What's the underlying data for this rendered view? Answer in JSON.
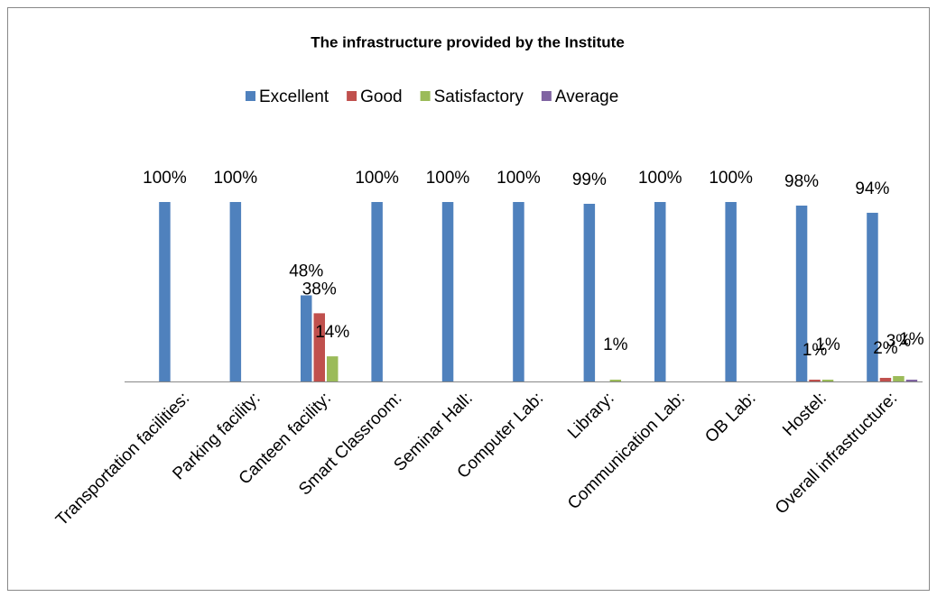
{
  "chart_data": {
    "type": "bar",
    "title": "The infrastructure provided by the Institute",
    "categories": [
      "Transportation facilities:",
      "Parking facility:",
      "Canteen facility:",
      "Smart Classroom:",
      "Seminar Hall:",
      "Computer Lab:",
      "Library:",
      "Communication Lab:",
      "OB Lab:",
      "Hostel:",
      "Overall infrastructure:"
    ],
    "series": [
      {
        "name": "Excellent",
        "color": "#4f81bd",
        "values": [
          100,
          100,
          48,
          100,
          100,
          100,
          99,
          100,
          100,
          98,
          94
        ],
        "value_labels": [
          "100%",
          "100%",
          "48%",
          "100%",
          "100%",
          "100%",
          "99%",
          "100%",
          "100%",
          "98%",
          "94%"
        ]
      },
      {
        "name": "Good",
        "color": "#c0504d",
        "values": [
          null,
          null,
          38,
          null,
          null,
          null,
          null,
          null,
          null,
          1,
          2
        ],
        "value_labels": [
          null,
          null,
          "38%",
          null,
          null,
          null,
          null,
          null,
          null,
          "1%",
          "2%"
        ]
      },
      {
        "name": "Satisfactory",
        "color": "#9bbb59",
        "values": [
          null,
          null,
          14,
          null,
          null,
          null,
          1,
          null,
          null,
          1,
          3
        ],
        "value_labels": [
          null,
          null,
          "14%",
          null,
          null,
          null,
          "1%",
          null,
          null,
          "1%",
          "3%"
        ]
      },
      {
        "name": "Average",
        "color": "#8064a2",
        "values": [
          null,
          null,
          null,
          null,
          null,
          null,
          null,
          null,
          null,
          null,
          1
        ],
        "value_labels": [
          null,
          null,
          null,
          null,
          null,
          null,
          null,
          null,
          null,
          null,
          "1%"
        ]
      }
    ],
    "ylim": [
      0,
      100
    ],
    "legend": "top"
  }
}
